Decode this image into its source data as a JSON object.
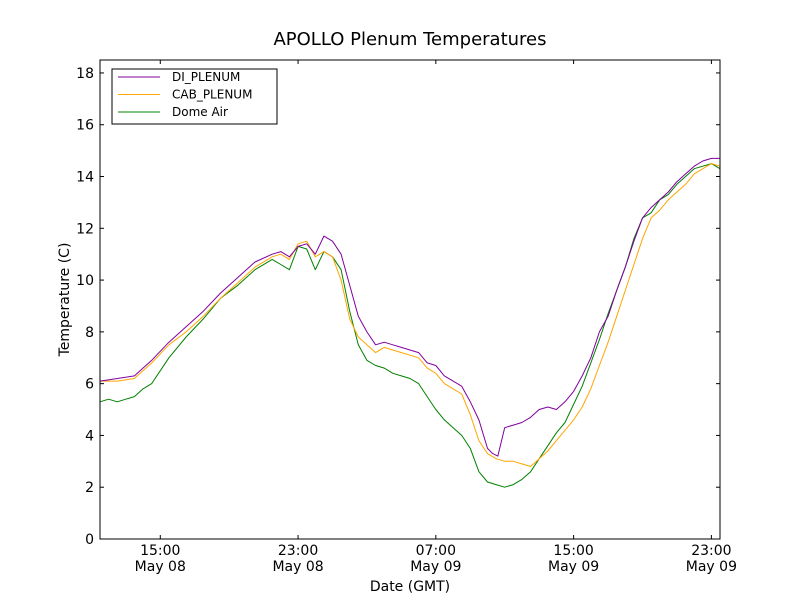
{
  "chart_data": {
    "type": "line",
    "title": "APOLLO Plenum Temperatures",
    "xlabel": "Date (GMT)",
    "ylabel": "Temperature (C)",
    "x_unit": "hours since May 08 00:00 GMT",
    "xlim": [
      11.5,
      47.5
    ],
    "ylim": [
      0,
      18.5
    ],
    "yticks": [
      0,
      2,
      4,
      6,
      8,
      10,
      12,
      14,
      16,
      18
    ],
    "xticks": [
      {
        "x": 15,
        "time": "15:00",
        "date": "May 08"
      },
      {
        "x": 23,
        "time": "23:00",
        "date": "May 08"
      },
      {
        "x": 31,
        "time": "07:00",
        "date": "May 09"
      },
      {
        "x": 39,
        "time": "15:00",
        "date": "May 09"
      },
      {
        "x": 47,
        "time": "23:00",
        "date": "May 09"
      }
    ],
    "legend_position": "top-left",
    "series": [
      {
        "name": "DI_PLENUM",
        "color": "#8000a0",
        "x": [
          11.5,
          12.5,
          13.5,
          14.5,
          15.5,
          16.5,
          17.5,
          18.5,
          19.5,
          20.5,
          21.5,
          22.0,
          22.5,
          23.0,
          23.5,
          24.0,
          24.5,
          25.0,
          25.5,
          26.0,
          26.5,
          27.0,
          27.5,
          28.0,
          28.5,
          29.0,
          29.5,
          30.0,
          30.5,
          31.0,
          31.5,
          32.0,
          32.5,
          33.0,
          33.5,
          34.0,
          34.3,
          34.6,
          35.0,
          35.5,
          36.0,
          36.5,
          37.0,
          37.5,
          38.0,
          38.5,
          39.0,
          39.5,
          40.0,
          40.5,
          41.0,
          41.5,
          42.0,
          42.5,
          43.0,
          43.5,
          44.0,
          44.5,
          45.0,
          45.5,
          46.0,
          46.5,
          47.0,
          47.5
        ],
        "values": [
          6.1,
          6.2,
          6.3,
          6.9,
          7.6,
          8.2,
          8.8,
          9.5,
          10.1,
          10.7,
          11.0,
          11.1,
          10.9,
          11.3,
          11.4,
          11.0,
          11.7,
          11.5,
          11.0,
          9.8,
          8.6,
          8.0,
          7.5,
          7.6,
          7.5,
          7.4,
          7.3,
          7.2,
          6.8,
          6.7,
          6.3,
          6.1,
          5.9,
          5.3,
          4.6,
          3.5,
          3.3,
          3.2,
          4.3,
          4.4,
          4.5,
          4.7,
          5.0,
          5.1,
          5.0,
          5.3,
          5.7,
          6.3,
          7.0,
          8.0,
          8.6,
          9.6,
          10.5,
          11.5,
          12.4,
          12.8,
          13.1,
          13.4,
          13.8,
          14.1,
          14.4,
          14.6,
          14.7,
          14.7
        ]
      },
      {
        "name": "CAB_PLENUM",
        "color": "#ffa500",
        "x": [
          11.5,
          12.5,
          13.5,
          14.5,
          15.5,
          16.5,
          17.5,
          18.5,
          19.5,
          20.5,
          21.5,
          22.0,
          22.5,
          23.0,
          23.5,
          24.0,
          24.5,
          25.0,
          25.5,
          26.0,
          26.5,
          27.0,
          27.5,
          28.0,
          28.5,
          29.0,
          29.5,
          30.0,
          30.5,
          31.0,
          31.5,
          32.0,
          32.5,
          33.0,
          33.5,
          34.0,
          34.5,
          35.0,
          35.5,
          36.0,
          36.5,
          37.0,
          37.5,
          38.0,
          38.5,
          39.0,
          39.5,
          40.0,
          40.5,
          41.0,
          41.5,
          42.0,
          42.5,
          43.0,
          43.5,
          44.0,
          44.5,
          45.0,
          45.5,
          46.0,
          46.5,
          47.0,
          47.5
        ],
        "values": [
          6.1,
          6.1,
          6.2,
          6.8,
          7.5,
          8.0,
          8.6,
          9.3,
          9.9,
          10.5,
          10.9,
          11.0,
          10.8,
          11.4,
          11.5,
          10.9,
          11.1,
          10.9,
          10.0,
          8.5,
          7.8,
          7.5,
          7.2,
          7.4,
          7.3,
          7.2,
          7.1,
          7.0,
          6.6,
          6.4,
          6.0,
          5.8,
          5.6,
          4.8,
          3.8,
          3.3,
          3.1,
          3.0,
          3.0,
          2.9,
          2.8,
          3.1,
          3.4,
          3.8,
          4.2,
          4.6,
          5.1,
          5.8,
          6.7,
          7.6,
          8.6,
          9.6,
          10.6,
          11.6,
          12.4,
          12.7,
          13.1,
          13.4,
          13.7,
          14.1,
          14.3,
          14.5,
          14.4
        ]
      },
      {
        "name": "Dome Air",
        "color": "#008000",
        "x": [
          11.5,
          12.0,
          12.5,
          13.0,
          13.5,
          14.0,
          14.5,
          15.5,
          16.5,
          17.5,
          18.5,
          19.5,
          20.5,
          21.5,
          22.0,
          22.5,
          23.0,
          23.5,
          24.0,
          24.5,
          25.0,
          25.5,
          26.0,
          26.5,
          27.0,
          27.5,
          28.0,
          28.5,
          29.0,
          29.5,
          30.0,
          30.5,
          31.0,
          31.5,
          32.0,
          32.5,
          33.0,
          33.5,
          34.0,
          34.5,
          35.0,
          35.5,
          36.0,
          36.5,
          37.0,
          37.5,
          38.0,
          38.5,
          39.0,
          39.5,
          40.0,
          40.5,
          41.0,
          41.5,
          42.0,
          42.5,
          43.0,
          43.5,
          44.0,
          44.5,
          45.0,
          45.5,
          46.0,
          46.5,
          47.0,
          47.5
        ],
        "values": [
          5.3,
          5.4,
          5.3,
          5.4,
          5.5,
          5.8,
          6.0,
          7.0,
          7.8,
          8.5,
          9.3,
          9.8,
          10.4,
          10.8,
          10.6,
          10.4,
          11.3,
          11.2,
          10.4,
          11.1,
          10.9,
          10.4,
          8.8,
          7.5,
          6.9,
          6.7,
          6.6,
          6.4,
          6.3,
          6.2,
          6.0,
          5.5,
          5.0,
          4.6,
          4.3,
          4.0,
          3.5,
          2.6,
          2.2,
          2.1,
          2.0,
          2.1,
          2.3,
          2.6,
          3.1,
          3.6,
          4.1,
          4.5,
          5.2,
          5.9,
          6.8,
          7.7,
          8.7,
          9.6,
          10.5,
          11.6,
          12.4,
          12.6,
          13.1,
          13.3,
          13.7,
          14.0,
          14.3,
          14.4,
          14.5,
          14.3
        ]
      }
    ]
  }
}
